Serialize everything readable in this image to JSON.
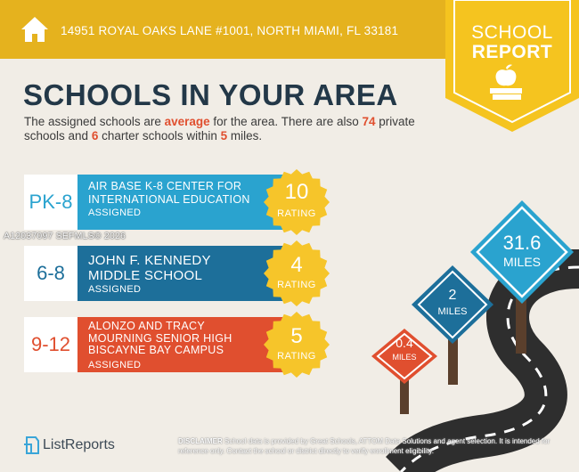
{
  "header": {
    "address": "14951 ROYAL OAKS LANE #1001, NORTH MIAMI, FL 33181",
    "home_icon": "home-icon",
    "bar_color": "#e5b21e"
  },
  "badge": {
    "line1": "SCHOOL",
    "line2": "REPORT",
    "icon": "apple-on-books-icon"
  },
  "title": "SCHOOLS IN YOUR AREA",
  "intro": {
    "p1": "The assigned schools are ",
    "w1": "average",
    "p2": " for the area. There are also ",
    "n1": "74",
    "p3": " private schools and ",
    "n2": "6",
    "p4": " charter schools within ",
    "n3": "5",
    "p5": " miles."
  },
  "schools": [
    {
      "grade": "PK-8",
      "name": "AIR BASE K-8 CENTER FOR INTERNATIONAL EDUCATION",
      "status": "ASSIGNED",
      "rating": "10",
      "rating_label": "RATING",
      "color": "#2aa3cf"
    },
    {
      "grade": "6-8",
      "name": "JOHN F. KENNEDY MIDDLE SCHOOL",
      "status": "ASSIGNED",
      "rating": "4",
      "rating_label": "RATING",
      "color": "#1d6f9a"
    },
    {
      "grade": "9-12",
      "name": "ALONZO AND TRACY MOURNING SENIOR HIGH BISCAYNE BAY CAMPUS",
      "status": "ASSIGNED",
      "rating": "5",
      "rating_label": "RATING",
      "color": "#e04f2f"
    }
  ],
  "watermark": "A12037097  SEFMLS© 2026",
  "signs": [
    {
      "value": "0.4",
      "unit": "MILES",
      "color": "#e04f2f"
    },
    {
      "value": "2",
      "unit": "MILES",
      "color": "#1d6f9a"
    },
    {
      "value": "31.6",
      "unit": "MILES",
      "color": "#2aa3cf"
    }
  ],
  "logo": {
    "text": "ListReports",
    "icon": "listreports-logo-icon"
  },
  "disclaimer": {
    "label": "DISCLAIMER",
    "text": " School data is provided by Great Schools, ATTOM Data Solutions and agent selection. It is intended for reference only. Contact the school or district directly to verify enrollment eligibility."
  }
}
